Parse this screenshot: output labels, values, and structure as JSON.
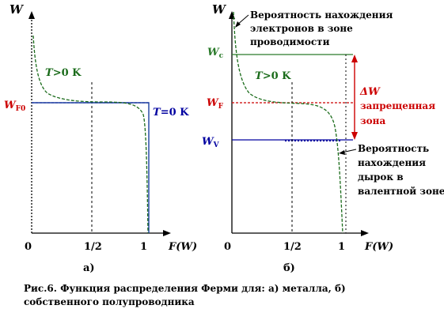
{
  "colors": {
    "axis": "#000000",
    "curve": "#1a6b1a",
    "red": "#cc0000",
    "blue": "#0000a0",
    "green_line": "#2a7a2a"
  },
  "left_panel": {
    "y_axis_label": "W",
    "fermi_label": "W",
    "fermi_sub": "F0",
    "temp_hot_T": "T",
    "temp_hot_rest": ">0 K",
    "temp_zero_T": "T",
    "temp_zero_rest": "=0 K",
    "tick_0": "0",
    "tick_half": "1/2",
    "tick_1": "1",
    "x_axis_label": "F(W)",
    "panel_label": "а)"
  },
  "right_panel": {
    "y_axis_label": "W",
    "conduction_label": "W",
    "conduction_sub": "c",
    "fermi_label": "W",
    "fermi_sub": "F",
    "valence_label": "W",
    "valence_sub": "V",
    "temp_hot_T": "T",
    "temp_hot_rest": ">0 K",
    "electrons_note": [
      "Вероятность нахождения",
      "электронов в зоне",
      "проводимости"
    ],
    "gap_symbol": "ΔW",
    "gap_note": [
      "запрещенная",
      "зона"
    ],
    "holes_note": [
      "Вероятность",
      "нахождения",
      "дырок в",
      "валентной зоне"
    ],
    "tick_0": "0",
    "tick_half": "1/2",
    "tick_1": "1",
    "x_axis_label": "F(W)",
    "panel_label": "б)"
  },
  "caption": "Рис.6. Функция распределения Ферми для: а) металла, б) собственного полупроводника"
}
